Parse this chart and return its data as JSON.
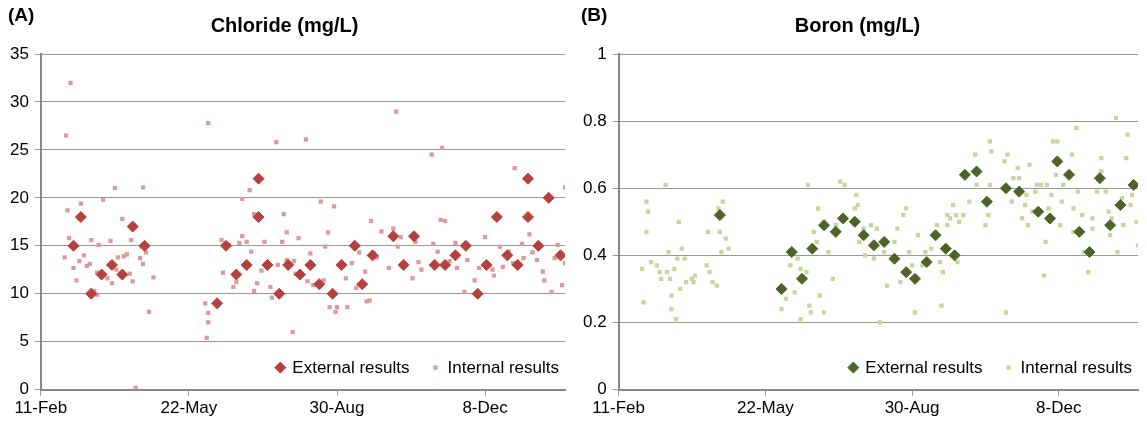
{
  "chart_data": [
    {
      "type": "scatter",
      "title": "Chloride (mg/L)",
      "annotations": [
        "(A)"
      ],
      "legend": "bottom right",
      "grid": "y",
      "xlim": [
        "2001-02-11",
        "2002-01-31"
      ],
      "xticks": [
        {
          "value": "--02-11",
          "label": "11-Feb"
        },
        {
          "value": "--05-22",
          "label": "22-May"
        },
        {
          "value": "--08-30",
          "label": "30-Aug"
        },
        {
          "value": "--12-08",
          "label": "8-Dec"
        }
      ],
      "ylim": [
        0,
        35
      ],
      "yticks": [
        0,
        5,
        10,
        15,
        20,
        25,
        30,
        35
      ],
      "series": [
        {
          "name": "External results",
          "color": "#b5403d",
          "marker": "diamond",
          "x": [
            "2001-03-05",
            "2001-03-10",
            "2001-03-17",
            "2001-03-24",
            "2001-03-31",
            "2001-04-07",
            "2001-04-14",
            "2001-04-22",
            "2001-06-10",
            "2001-06-16",
            "2001-06-23",
            "2001-06-30",
            "2001-07-08",
            "2001-07-08",
            "2001-07-14",
            "2001-07-22",
            "2001-07-28",
            "2001-08-05",
            "2001-08-12",
            "2001-08-18",
            "2001-08-27",
            "2001-09-02",
            "2001-09-11",
            "2001-09-16",
            "2001-09-23",
            "2001-10-07",
            "2001-10-14",
            "2001-10-21",
            "2001-11-04",
            "2001-11-11",
            "2001-11-18",
            "2001-11-25",
            "2001-12-03",
            "2001-12-09",
            "2001-12-16",
            "2001-12-23",
            "2001-12-30",
            "2002-01-06",
            "2002-01-06",
            "2002-01-13",
            "2002-01-20",
            "2002-01-28"
          ],
          "values": [
            15,
            18,
            10,
            12,
            13,
            12,
            17,
            15,
            9,
            15,
            12,
            13,
            22,
            18,
            13,
            10,
            13,
            12,
            13,
            11,
            10,
            13,
            15,
            11,
            14,
            16,
            13,
            16,
            13,
            13,
            14,
            15,
            10,
            13,
            18,
            14,
            13,
            22,
            18,
            15,
            20,
            14
          ]
        },
        {
          "name": "Internal results",
          "color": "#dc9a98",
          "marker": "square",
          "x": [
            "2001-02-28",
            "2001-03-03",
            "2001-03-01",
            "2001-02-27",
            "2001-03-02",
            "2001-03-05",
            "2001-03-07",
            "2001-03-09",
            "2001-03-10",
            "2001-03-12",
            "2001-03-14",
            "2001-03-16",
            "2001-03-17",
            "2001-03-19",
            "2001-03-21",
            "2001-03-22",
            "2001-03-21",
            "2001-03-25",
            "2001-03-28",
            "2001-03-30",
            "2001-03-31",
            "2001-04-02",
            "2001-04-03",
            "2001-04-04",
            "2001-04-06",
            "2001-04-07",
            "2001-04-08",
            "2001-04-10",
            "2001-04-12",
            "2001-04-13",
            "2001-04-14",
            "2001-04-16",
            "2001-04-19",
            "2001-04-20",
            "2001-04-21",
            "2001-04-21",
            "2001-04-23",
            "2001-04-25",
            "2001-04-28",
            "2001-06-02",
            "2001-06-04",
            "2001-06-04",
            "2001-06-03",
            "2001-06-04",
            "2001-06-13",
            "2001-06-18",
            "2001-06-14",
            "2001-06-21",
            "2001-06-23",
            "2001-06-25",
            "2001-06-27",
            "2001-06-27",
            "2001-07-02",
            "2001-06-30",
            "2001-07-03",
            "2001-07-05",
            "2001-07-07",
            "2001-07-05",
            "2001-07-10",
            "2001-07-12",
            "2001-07-16",
            "2001-07-17",
            "2001-07-20",
            "2001-07-21",
            "2001-07-24",
            "2001-07-25",
            "2001-07-27",
            "2001-07-27",
            "2001-07-31",
            "2001-08-01",
            "2001-08-04",
            "2001-08-02",
            "2001-08-09",
            "2001-08-10",
            "2001-08-12",
            "2001-08-14",
            "2001-08-19",
            "2001-08-22",
            "2001-08-21",
            "2001-08-24",
            "2001-08-25",
            "2001-08-28",
            "2001-08-29",
            "2001-08-30",
            "2001-09-05",
            "2001-09-06",
            "2001-09-09",
            "2001-09-12",
            "2001-09-14",
            "2001-09-18",
            "2001-09-19",
            "2001-09-21",
            "2001-09-22",
            "2001-09-24",
            "2001-09-26",
            "2001-09-29",
            "2001-10-07",
            "2001-10-09",
            "2001-10-12",
            "2001-10-10",
            "2001-10-04",
            "2001-10-20",
            "2001-10-22",
            "2001-10-24",
            "2001-10-26",
            "2001-11-02",
            "2001-11-03",
            "2001-11-06",
            "2001-11-09",
            "2001-11-08",
            "2001-11-11",
            "2001-11-14",
            "2001-11-18",
            "2001-11-19",
            "2001-11-26",
            "2001-11-24",
            "2001-12-01",
            "2001-12-04",
            "2001-12-08",
            "2001-12-13",
            "2001-12-14",
            "2001-12-18",
            "2001-12-20",
            "2001-12-24",
            "2001-12-28",
            "2001-12-27",
            "2002-01-02",
            "2002-01-03",
            "2002-01-07",
            "2002-01-09",
            "2002-01-12",
            "2002-01-16",
            "2002-01-17",
            "2002-01-22",
            "2002-01-24",
            "2002-01-26",
            "2002-01-29",
            "2002-01-31",
            "2002-01-31"
          ],
          "values": [
            26.5,
            32,
            18.7,
            13.8,
            15.8,
            12.7,
            11.4,
            13.4,
            19.4,
            14,
            12.9,
            13.1,
            15.6,
            10.3,
            9.9,
            15.1,
            12.2,
            19.8,
            11.6,
            15.5,
            11.1,
            21,
            12.5,
            13.8,
            null,
            17.8,
            13.9,
            14.1,
            12.1,
            15.6,
            11.3,
            0.2,
            13.7,
            14.9,
            21.1,
            13.1,
            14.3,
            8.1,
            11.7,
            9,
            8,
            7,
            5.4,
            27.8,
            15.6,
            15.1,
            12.2,
            10.7,
            11.2,
            15.3,
            16,
            19.9,
            20.8,
            15.4,
            14.4,
            18.3,
            11.1,
            10.3,
            12.4,
            15.4,
            10.7,
            9.6,
            25.8,
            13,
            15.4,
            18.3,
            16.4,
            13.5,
            6,
            13.4,
            15.8,
            12.1,
            26.1,
            11.3,
            14.2,
            10.9,
            19.6,
            14.9,
            11.4,
            16.4,
            8.6,
            19.1,
            8.1,
            8.6,
            11.6,
            8.6,
            13.2,
            10.6,
            14.3,
            12.3,
            9.2,
            9.3,
            17.6,
            14.2,
            13.8,
            16.5,
            16.8,
            29,
            15.9,
            14.9,
            12.7,
            11.6,
            15.4,
            13.3,
            12.5,
            24.5,
            15.2,
            14.4,
            25.2,
            17.7,
            17.6,
            13.4,
            15.3,
            12.7,
            13.5,
            10.2,
            11.4,
            12.7,
            15.9,
            12.5,
            11.9,
            14.9,
            12.8,
            14.4,
            23.1,
            13.2,
            15.2,
            13.7,
            16.2,
            14.3,
            13.5,
            12.3,
            11.4,
            10.2,
            13.7,
            15.1,
            10.9,
            21.1,
            13.2
          ]
        }
      ]
    },
    {
      "type": "scatter",
      "title": "Boron (mg/L)",
      "annotations": [
        "(B)"
      ],
      "legend": "bottom right",
      "grid": "y",
      "xlim": [
        "2001-02-11",
        "2002-01-31"
      ],
      "xticks": [
        {
          "value": "--02-11",
          "label": "11-Feb"
        },
        {
          "value": "--05-22",
          "label": "22-May"
        },
        {
          "value": "--08-30",
          "label": "30-Aug"
        },
        {
          "value": "--12-08",
          "label": "8-Dec"
        }
      ],
      "ylim": [
        0,
        1
      ],
      "yticks": [
        0,
        0.2,
        0.4,
        0.6,
        0.8,
        1
      ],
      "series": [
        {
          "name": "External results",
          "color": "#4f6228",
          "marker": "diamond",
          "x": [
            "2001-04-21",
            "2001-06-02",
            "2001-06-09",
            "2001-06-16",
            "2001-06-23",
            "2001-07-01",
            "2001-07-09",
            "2001-07-14",
            "2001-07-22",
            "2001-07-28",
            "2001-08-04",
            "2001-08-11",
            "2001-08-18",
            "2001-08-26",
            "2001-09-01",
            "2001-09-09",
            "2001-09-15",
            "2001-09-22",
            "2001-09-28",
            "2001-10-05",
            "2001-10-13",
            "2001-10-20",
            "2001-11-02",
            "2001-11-11",
            "2001-11-24",
            "2001-12-02",
            "2001-12-07",
            "2001-12-15",
            "2001-12-22",
            "2001-12-29",
            "2002-01-05",
            "2002-01-12",
            "2002-01-19",
            "2002-01-28"
          ],
          "values": [
            0.52,
            0.3,
            0.41,
            0.33,
            0.42,
            0.49,
            0.47,
            0.51,
            0.5,
            0.46,
            0.43,
            0.44,
            0.39,
            0.35,
            0.33,
            0.38,
            0.46,
            0.42,
            0.4,
            0.64,
            0.65,
            0.56,
            0.6,
            0.59,
            0.53,
            0.51,
            0.68,
            0.64,
            0.47,
            0.41,
            0.63,
            0.49,
            0.55,
            0.61
          ]
        },
        {
          "name": "Internal results",
          "color": "#c3d69b",
          "marker": "square",
          "x": [
            "2001-02-27",
            "2001-02-28",
            "2001-03-02",
            "2001-03-03",
            "2001-03-02",
            "2001-03-05",
            "2001-03-09",
            "2001-03-11",
            "2001-03-12",
            "2001-03-15",
            "2001-03-17",
            "2001-03-16",
            "2001-03-18",
            "2001-03-19",
            "2001-03-19",
            "2001-03-21",
            "2001-03-22",
            "2001-03-23",
            "2001-03-24",
            "2001-03-26",
            "2001-03-25",
            "2001-03-28",
            "2001-03-29",
            "2001-04-02",
            "2001-04-04",
            "2001-04-03",
            "2001-04-12",
            "2001-04-13",
            "2001-04-14",
            "2001-04-16",
            "2001-04-19",
            "2001-04-20",
            "2001-04-21",
            "2001-04-22",
            "2001-04-23",
            "2001-04-25",
            "2001-04-27",
            "2001-06-02",
            "2001-06-05",
            "2001-06-08",
            "2001-06-11",
            "2001-06-13",
            "2001-06-15",
            "2001-06-15",
            "2001-06-19",
            "2001-06-20",
            "2001-06-21",
            "2001-06-22",
            "2001-06-24",
            "2001-06-26",
            "2001-06-27",
            "2001-06-28",
            "2001-07-01",
            "2001-07-04",
            "2001-07-07",
            "2001-07-09",
            "2001-07-12",
            "2001-07-15",
            "2001-07-23",
            "2001-07-24",
            "2001-07-22",
            "2001-07-25",
            "2001-07-28",
            "2001-07-29",
            "2001-08-02",
            "2001-08-06",
            "2001-08-04",
            "2001-08-08",
            "2001-08-11",
            "2001-08-13",
            "2001-08-18",
            "2001-08-20",
            "2001-08-22",
            "2001-08-24",
            "2001-08-26",
            "2001-08-28",
            "2001-08-30",
            "2001-09-01",
            "2001-09-03",
            "2001-09-06",
            "2001-09-08",
            "2001-09-12",
            "2001-09-16",
            "2001-09-18",
            "2001-09-19",
            "2001-09-20",
            "2001-09-23",
            "2001-09-23",
            "2001-09-25",
            "2001-09-27",
            "2001-09-29",
            "2001-09-30",
            "2001-10-01",
            "2001-10-04",
            "2001-10-08",
            "2001-10-12",
            "2001-10-13",
            "2001-10-19",
            "2001-10-21",
            "2001-10-22",
            "2001-10-23",
            "2001-10-22",
            "2001-11-01",
            "2001-11-03",
            "2001-11-02",
            "2001-11-06",
            "2001-11-07",
            "2001-11-10",
            "2001-11-11",
            "2001-11-13",
            "2001-11-15",
            "2001-11-16",
            "2001-11-18",
            "2001-11-17",
            "2001-11-20",
            "2001-11-22",
            "2001-11-23",
            "2001-11-26",
            "2001-11-28",
            "2001-11-29",
            "2001-11-30",
            "2001-12-01",
            "2001-12-03",
            "2001-12-04",
            "2001-12-07",
            "2001-12-06",
            "2001-12-09",
            "2001-12-10",
            "2001-12-11",
            "2001-12-17",
            "2001-12-20",
            "2001-12-18",
            "2001-12-21",
            "2001-12-18",
            "2001-12-24",
            "2001-12-25",
            "2001-12-28",
            "2001-12-31",
            "2001-12-31",
            "2002-01-03",
            "2002-01-06",
            "2002-01-06",
            "2002-01-09",
            "2002-01-11",
            "2002-01-12",
            "2002-01-13",
            "2002-01-16",
            "2002-01-17",
            "2002-01-20",
            "2002-01-21",
            "2002-01-23",
            "2002-01-24",
            "2002-01-26",
            "2002-01-27",
            "2002-01-30",
            "2002-01-31"
          ],
          "values": [
            0.36,
            0.26,
            0.56,
            0.53,
            0.47,
            0.38,
            0.37,
            0.35,
            0.33,
            0.61,
            0.41,
            0.35,
            0.33,
            0.28,
            0.24,
            0.36,
            0.21,
            0.39,
            0.5,
            0.42,
            0.3,
            0.39,
            0.32,
            0.33,
            0.34,
            0.32,
            0.37,
            0.47,
            0.35,
            0.32,
            0.31,
            0.54,
            0.47,
            0.41,
            0.56,
            0.45,
            0.42,
            0.24,
            0.27,
            0.37,
            0.29,
            0.39,
            0.36,
            0.21,
            0.35,
            0.61,
            0.25,
            0.23,
            0.47,
            0.44,
            0.54,
            0.28,
            0.23,
            0.41,
            0.33,
            0.49,
            0.62,
            0.61,
            0.58,
            0.55,
            0.54,
            0.44,
            0.48,
            0.4,
            0.49,
            0.48,
            0.39,
            0.2,
            0.41,
            0.31,
            0.44,
            0.48,
            0.32,
            0.52,
            0.54,
            0.41,
            0.37,
            0.23,
            0.46,
            0.37,
            0.41,
            0.42,
            0.49,
            0.38,
            0.25,
            0.35,
            0.52,
            0.49,
            0.51,
            0.55,
            0.52,
            0.38,
            0.5,
            0.52,
            0.56,
            0.7,
            0.61,
            0.49,
            0.52,
            0.74,
            0.71,
            0.61,
            0.68,
            0.7,
            0.23,
            0.56,
            0.63,
            0.66,
            0.63,
            0.51,
            0.55,
            0.58,
            0.67,
            0.49,
            0.53,
            0.59,
            0.61,
            0.61,
            0.34,
            0.44,
            0.61,
            0.54,
            0.58,
            0.74,
            0.74,
            0.64,
            0.49,
            0.56,
            0.61,
            0.7,
            0.78,
            0.47,
            0.59,
            0.54,
            0.52,
            0.41,
            0.35,
            0.48,
            0.51,
            0.59,
            0.69,
            0.65,
            0.59,
            0.53,
            0.46,
            0.51,
            0.81,
            0.41,
            0.57,
            0.49,
            0.69,
            0.76,
            0.55,
            0.58,
            0.5,
            0.43
          ]
        }
      ]
    }
  ]
}
